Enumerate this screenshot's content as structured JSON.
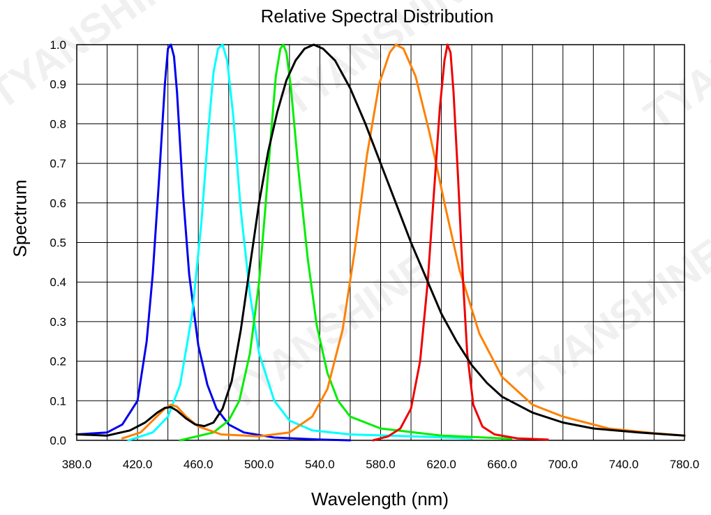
{
  "chart_data": {
    "type": "line",
    "title": "Relative Spectral Distribution",
    "xlabel": "Wavelength (nm)",
    "ylabel": "Spectrum",
    "xlim": [
      380,
      780
    ],
    "ylim": [
      0,
      1
    ],
    "x_ticks": [
      "380.0",
      "420.0",
      "460.0",
      "500.0",
      "540.0",
      "580.0",
      "620.0",
      "660.0",
      "700.0",
      "740.0",
      "780.0"
    ],
    "y_ticks": [
      "0.0",
      "0.1",
      "0.2",
      "0.3",
      "0.4",
      "0.5",
      "0.6",
      "0.7",
      "0.8",
      "0.9",
      "1.0"
    ],
    "grid": true,
    "legend": "none",
    "series": [
      {
        "color": "#0000ee",
        "points": [
          [
            380,
            0.015
          ],
          [
            400,
            0.02
          ],
          [
            410,
            0.04
          ],
          [
            420,
            0.1
          ],
          [
            426,
            0.25
          ],
          [
            430,
            0.42
          ],
          [
            434,
            0.65
          ],
          [
            438,
            0.9
          ],
          [
            440,
            0.99
          ],
          [
            442,
            1.0
          ],
          [
            444,
            0.97
          ],
          [
            446,
            0.88
          ],
          [
            450,
            0.62
          ],
          [
            454,
            0.42
          ],
          [
            460,
            0.24
          ],
          [
            466,
            0.14
          ],
          [
            472,
            0.08
          ],
          [
            480,
            0.04
          ],
          [
            490,
            0.02
          ],
          [
            510,
            0.007
          ],
          [
            540,
            0.002
          ],
          [
            560,
            0.0
          ]
        ]
      },
      {
        "color": "#00ffff",
        "points": [
          [
            414,
            0.0
          ],
          [
            430,
            0.02
          ],
          [
            440,
            0.06
          ],
          [
            448,
            0.14
          ],
          [
            456,
            0.32
          ],
          [
            462,
            0.55
          ],
          [
            467,
            0.8
          ],
          [
            470,
            0.93
          ],
          [
            473,
            0.99
          ],
          [
            476,
            1.0
          ],
          [
            479,
            0.96
          ],
          [
            483,
            0.82
          ],
          [
            488,
            0.58
          ],
          [
            494,
            0.37
          ],
          [
            500,
            0.22
          ],
          [
            510,
            0.1
          ],
          [
            520,
            0.05
          ],
          [
            535,
            0.025
          ],
          [
            560,
            0.015
          ],
          [
            600,
            0.01
          ],
          [
            640,
            0.005
          ]
        ]
      },
      {
        "color": "#00ee00",
        "points": [
          [
            448,
            0.0
          ],
          [
            470,
            0.02
          ],
          [
            480,
            0.05
          ],
          [
            487,
            0.1
          ],
          [
            494,
            0.22
          ],
          [
            500,
            0.4
          ],
          [
            504,
            0.58
          ],
          [
            508,
            0.78
          ],
          [
            511,
            0.92
          ],
          [
            514,
            0.99
          ],
          [
            516,
            1.0
          ],
          [
            518,
            0.98
          ],
          [
            521,
            0.89
          ],
          [
            526,
            0.68
          ],
          [
            532,
            0.46
          ],
          [
            538,
            0.29
          ],
          [
            545,
            0.17
          ],
          [
            552,
            0.1
          ],
          [
            560,
            0.06
          ],
          [
            580,
            0.03
          ],
          [
            620,
            0.012
          ],
          [
            666,
            0.004
          ]
        ]
      },
      {
        "color": "#ff8000",
        "points": [
          [
            410,
            0.005
          ],
          [
            422,
            0.02
          ],
          [
            430,
            0.05
          ],
          [
            438,
            0.08
          ],
          [
            442,
            0.09
          ],
          [
            446,
            0.085
          ],
          [
            452,
            0.06
          ],
          [
            460,
            0.035
          ],
          [
            475,
            0.015
          ],
          [
            500,
            0.01
          ],
          [
            520,
            0.02
          ],
          [
            535,
            0.06
          ],
          [
            545,
            0.13
          ],
          [
            555,
            0.28
          ],
          [
            563,
            0.48
          ],
          [
            571,
            0.72
          ],
          [
            579,
            0.9
          ],
          [
            586,
            0.98
          ],
          [
            590,
            1.0
          ],
          [
            595,
            0.99
          ],
          [
            603,
            0.92
          ],
          [
            612,
            0.78
          ],
          [
            622,
            0.6
          ],
          [
            632,
            0.43
          ],
          [
            645,
            0.27
          ],
          [
            660,
            0.16
          ],
          [
            680,
            0.09
          ],
          [
            700,
            0.06
          ],
          [
            730,
            0.03
          ],
          [
            760,
            0.018
          ],
          [
            780,
            0.012
          ]
        ]
      },
      {
        "color": "#ee0000",
        "points": [
          [
            575,
            0.0
          ],
          [
            585,
            0.01
          ],
          [
            593,
            0.03
          ],
          [
            600,
            0.08
          ],
          [
            606,
            0.2
          ],
          [
            611,
            0.4
          ],
          [
            615,
            0.62
          ],
          [
            619,
            0.84
          ],
          [
            622,
            0.96
          ],
          [
            624,
            1.0
          ],
          [
            626,
            0.98
          ],
          [
            628,
            0.88
          ],
          [
            631,
            0.66
          ],
          [
            634,
            0.42
          ],
          [
            637,
            0.22
          ],
          [
            641,
            0.09
          ],
          [
            647,
            0.035
          ],
          [
            655,
            0.015
          ],
          [
            670,
            0.005
          ],
          [
            690,
            0.002
          ]
        ]
      },
      {
        "color": "#000000",
        "points": [
          [
            380,
            0.015
          ],
          [
            400,
            0.012
          ],
          [
            415,
            0.025
          ],
          [
            425,
            0.045
          ],
          [
            433,
            0.07
          ],
          [
            438,
            0.082
          ],
          [
            442,
            0.084
          ],
          [
            446,
            0.075
          ],
          [
            452,
            0.055
          ],
          [
            458,
            0.04
          ],
          [
            464,
            0.036
          ],
          [
            470,
            0.045
          ],
          [
            476,
            0.08
          ],
          [
            482,
            0.15
          ],
          [
            488,
            0.28
          ],
          [
            494,
            0.44
          ],
          [
            500,
            0.6
          ],
          [
            506,
            0.73
          ],
          [
            512,
            0.83
          ],
          [
            518,
            0.91
          ],
          [
            524,
            0.96
          ],
          [
            530,
            0.99
          ],
          [
            536,
            1.0
          ],
          [
            542,
            0.99
          ],
          [
            550,
            0.96
          ],
          [
            560,
            0.89
          ],
          [
            570,
            0.8
          ],
          [
            580,
            0.7
          ],
          [
            590,
            0.6
          ],
          [
            600,
            0.5
          ],
          [
            610,
            0.41
          ],
          [
            620,
            0.32
          ],
          [
            630,
            0.25
          ],
          [
            640,
            0.19
          ],
          [
            650,
            0.145
          ],
          [
            660,
            0.11
          ],
          [
            680,
            0.07
          ],
          [
            700,
            0.045
          ],
          [
            720,
            0.03
          ],
          [
            750,
            0.02
          ],
          [
            780,
            0.012
          ]
        ]
      }
    ]
  },
  "watermarks": [
    "TYANSHINE",
    "TYANSHINE",
    "TYANSHINE",
    "TYANSHINE",
    "TYANSHINE"
  ]
}
